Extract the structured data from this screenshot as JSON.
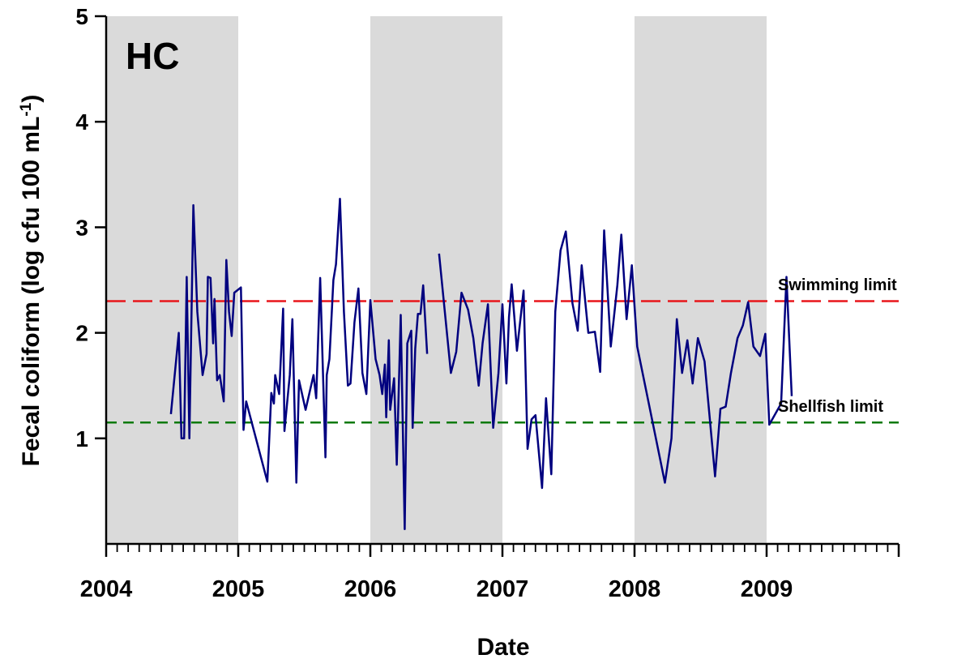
{
  "chart_data": {
    "type": "line",
    "panel_label": "HC",
    "xlabel": "Date",
    "ylabel": "Fecal coliform (log cfu 100 mL",
    "ylabel_superscript": "-1",
    "ylabel_close": ")",
    "x_tick_labels": [
      "2004",
      "2005",
      "2006",
      "2007",
      "2008",
      "2009"
    ],
    "y_tick_labels": [
      "1",
      "2",
      "3",
      "4",
      "5"
    ],
    "xlim": [
      2004.0,
      2010.0
    ],
    "ylim": [
      0,
      5
    ],
    "minor_ticks_per_year": 12,
    "grid": false,
    "shaded_years": [
      [
        2004.0,
        2005.0
      ],
      [
        2006.0,
        2007.0
      ],
      [
        2008.0,
        2009.0
      ]
    ],
    "reference_lines": [
      {
        "name": "Swimming limit",
        "value": 2.3,
        "color": "#e8161b",
        "style": "long-dash"
      },
      {
        "name": "Shellfish limit",
        "value": 1.15,
        "color": "#0b7a0b",
        "style": "dash"
      }
    ],
    "series": [
      {
        "color": "#00007f",
        "segments": [
          [
            [
              2004.49,
              1.23
            ],
            [
              2004.55,
              2.0
            ],
            [
              2004.57,
              1.0
            ],
            [
              2004.59,
              1.0
            ],
            [
              2004.61,
              2.53
            ],
            [
              2004.63,
              1.0
            ],
            [
              2004.66,
              3.21
            ],
            [
              2004.69,
              2.2
            ],
            [
              2004.73,
              1.6
            ],
            [
              2004.76,
              1.8
            ],
            [
              2004.77,
              2.53
            ],
            [
              2004.79,
              2.52
            ],
            [
              2004.81,
              1.9
            ],
            [
              2004.82,
              2.32
            ],
            [
              2004.84,
              1.55
            ],
            [
              2004.86,
              1.6
            ],
            [
              2004.89,
              1.35
            ],
            [
              2004.91,
              2.69
            ],
            [
              2004.93,
              2.2
            ],
            [
              2004.95,
              1.97
            ],
            [
              2004.97,
              2.38
            ],
            [
              2005.02,
              2.43
            ],
            [
              2005.04,
              1.08
            ],
            [
              2005.06,
              1.35
            ],
            [
              2005.22,
              0.59
            ],
            [
              2005.25,
              1.43
            ],
            [
              2005.27,
              1.33
            ],
            [
              2005.28,
              1.6
            ],
            [
              2005.31,
              1.42
            ],
            [
              2005.34,
              2.23
            ],
            [
              2005.35,
              1.07
            ],
            [
              2005.39,
              1.6
            ],
            [
              2005.41,
              2.13
            ],
            [
              2005.44,
              0.58
            ],
            [
              2005.46,
              1.55
            ],
            [
              2005.51,
              1.27
            ],
            [
              2005.57,
              1.6
            ],
            [
              2005.59,
              1.38
            ],
            [
              2005.62,
              2.52
            ],
            [
              2005.66,
              0.82
            ],
            [
              2005.67,
              1.6
            ],
            [
              2005.69,
              1.75
            ],
            [
              2005.72,
              2.5
            ],
            [
              2005.74,
              2.65
            ],
            [
              2005.77,
              3.27
            ],
            [
              2005.8,
              2.2
            ],
            [
              2005.83,
              1.5
            ],
            [
              2005.85,
              1.52
            ],
            [
              2005.88,
              2.1
            ],
            [
              2005.91,
              2.42
            ],
            [
              2005.94,
              1.62
            ],
            [
              2005.97,
              1.42
            ],
            [
              2006.0,
              2.31
            ],
            [
              2006.04,
              1.75
            ],
            [
              2006.07,
              1.6
            ],
            [
              2006.09,
              1.42
            ],
            [
              2006.11,
              1.7
            ],
            [
              2006.12,
              1.2
            ],
            [
              2006.14,
              1.93
            ],
            [
              2006.15,
              1.27
            ],
            [
              2006.18,
              1.57
            ],
            [
              2006.2,
              0.75
            ],
            [
              2006.23,
              2.17
            ],
            [
              2006.26,
              0.14
            ],
            [
              2006.28,
              1.9
            ],
            [
              2006.31,
              2.02
            ],
            [
              2006.32,
              1.1
            ],
            [
              2006.34,
              1.85
            ],
            [
              2006.36,
              2.18
            ],
            [
              2006.38,
              2.18
            ],
            [
              2006.4,
              2.45
            ],
            [
              2006.43,
              1.8
            ]
          ],
          [
            [
              2006.52,
              2.75
            ],
            [
              2006.61,
              1.62
            ],
            [
              2006.65,
              1.82
            ],
            [
              2006.69,
              2.38
            ],
            [
              2006.74,
              2.22
            ],
            [
              2006.78,
              1.95
            ],
            [
              2006.82,
              1.5
            ],
            [
              2006.85,
              1.9
            ],
            [
              2006.89,
              2.27
            ],
            [
              2006.93,
              1.1
            ],
            [
              2006.97,
              1.62
            ],
            [
              2007.0,
              2.27
            ],
            [
              2007.03,
              1.52
            ],
            [
              2007.05,
              2.15
            ],
            [
              2007.07,
              2.46
            ],
            [
              2007.09,
              2.15
            ],
            [
              2007.11,
              1.83
            ],
            [
              2007.16,
              2.4
            ],
            [
              2007.19,
              0.9
            ],
            [
              2007.22,
              1.18
            ],
            [
              2007.25,
              1.22
            ],
            [
              2007.3,
              0.53
            ],
            [
              2007.33,
              1.38
            ],
            [
              2007.37,
              0.66
            ],
            [
              2007.4,
              2.2
            ],
            [
              2007.44,
              2.78
            ],
            [
              2007.48,
              2.96
            ],
            [
              2007.53,
              2.28
            ],
            [
              2007.57,
              2.02
            ],
            [
              2007.6,
              2.64
            ],
            [
              2007.65,
              2.0
            ],
            [
              2007.7,
              2.01
            ],
            [
              2007.74,
              1.63
            ],
            [
              2007.77,
              2.97
            ],
            [
              2007.82,
              1.87
            ],
            [
              2007.87,
              2.45
            ],
            [
              2007.9,
              2.93
            ],
            [
              2007.94,
              2.13
            ],
            [
              2007.98,
              2.64
            ],
            [
              2008.02,
              1.87
            ],
            [
              2008.23,
              0.58
            ],
            [
              2008.28,
              1.0
            ],
            [
              2008.32,
              2.13
            ],
            [
              2008.36,
              1.62
            ],
            [
              2008.4,
              1.93
            ],
            [
              2008.44,
              1.52
            ],
            [
              2008.48,
              1.95
            ],
            [
              2008.53,
              1.73
            ],
            [
              2008.61,
              0.64
            ],
            [
              2008.65,
              1.28
            ],
            [
              2008.69,
              1.3
            ],
            [
              2008.73,
              1.62
            ],
            [
              2008.78,
              1.95
            ],
            [
              2008.82,
              2.07
            ],
            [
              2008.86,
              2.29
            ],
            [
              2008.9,
              1.87
            ],
            [
              2008.95,
              1.78
            ],
            [
              2008.99,
              1.99
            ],
            [
              2009.02,
              1.13
            ],
            [
              2009.11,
              1.33
            ],
            [
              2009.15,
              2.53
            ],
            [
              2009.19,
              1.4
            ]
          ]
        ]
      }
    ]
  }
}
